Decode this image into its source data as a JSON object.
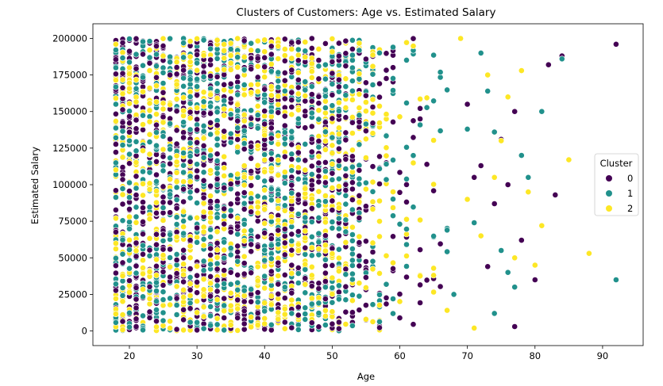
{
  "chart_data": {
    "type": "scatter",
    "title": "Clusters of Customers: Age vs. Estimated Salary",
    "xlabel": "Age",
    "ylabel": "Estimated Salary",
    "xlim": [
      14.6,
      96.0
    ],
    "ylim": [
      -10000,
      210000
    ],
    "xticks": [
      20,
      30,
      40,
      50,
      60,
      70,
      80,
      90
    ],
    "yticks": [
      0,
      25000,
      50000,
      75000,
      100000,
      125000,
      150000,
      175000,
      200000
    ],
    "ytick_labels": [
      "0",
      "25000",
      "50000",
      "75000",
      "100000",
      "125000",
      "150000",
      "175000",
      "200000"
    ],
    "legend": {
      "title": "Cluster",
      "placement": "center-right",
      "entries": [
        "0",
        "1",
        "2"
      ]
    },
    "series": [
      {
        "name": "0",
        "color": "#440154",
        "points": [
          [
            92,
            196000
          ],
          [
            83,
            93000
          ],
          [
            80,
            35000
          ],
          [
            82,
            182000
          ],
          [
            84,
            188000
          ],
          [
            77,
            3000
          ],
          [
            75,
            131000
          ],
          [
            76,
            100000
          ],
          [
            72,
            113000
          ],
          [
            74,
            87000
          ],
          [
            71,
            105000
          ],
          [
            78,
            62000
          ],
          [
            70,
            155000
          ],
          [
            73,
            44000
          ],
          [
            77,
            150000
          ]
        ]
      },
      {
        "name": "1",
        "color": "#21918c",
        "points": [
          [
            92,
            35000
          ],
          [
            84,
            186000
          ],
          [
            81,
            150000
          ],
          [
            78,
            120000
          ],
          [
            79,
            105000
          ],
          [
            76,
            40000
          ],
          [
            74,
            12000
          ],
          [
            73,
            164000
          ],
          [
            75,
            55000
          ],
          [
            72,
            190000
          ],
          [
            71,
            74000
          ],
          [
            70,
            138000
          ],
          [
            77,
            30000
          ],
          [
            74,
            136000
          ],
          [
            68,
            25000
          ]
        ]
      },
      {
        "name": "2",
        "color": "#fde725",
        "points": [
          [
            88,
            53000
          ],
          [
            85,
            117000
          ],
          [
            81,
            72000
          ],
          [
            80,
            45000
          ],
          [
            79,
            95000
          ],
          [
            77,
            50000
          ],
          [
            75,
            130000
          ],
          [
            73,
            175000
          ],
          [
            74,
            105000
          ],
          [
            72,
            65000
          ],
          [
            71,
            2000
          ],
          [
            69,
            200000
          ],
          [
            70,
            90000
          ],
          [
            76,
            160000
          ],
          [
            78,
            178000
          ]
        ]
      }
    ],
    "dense_region": {
      "note": "dense uniform cloud of points for all three clusters",
      "age_range": [
        18,
        60
      ],
      "salary_range": [
        0,
        200000
      ],
      "points_per_cluster": 1050
    }
  }
}
